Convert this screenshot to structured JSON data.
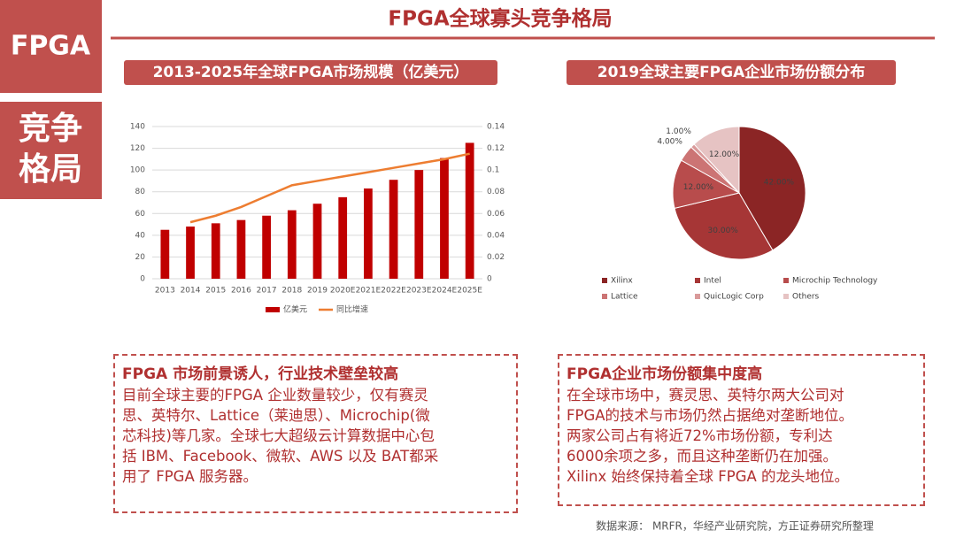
{
  "slide": {
    "tag": "FPGA",
    "tag2": "竞争格局",
    "title": "FPGA全球寡头竞争格局",
    "source": "数据来源： MRFR，华经产业研究院，方正证券研究所整理",
    "left_box": {
      "heading": "FPGA 市场前景诱人，行业技术壁垒较高",
      "lines": [
        "目前全球主要的FPGA 企业数量较少，仅有赛灵",
        "思、英特尔、Lattice（莱迪思）、Microchip(微",
        "芯科技)等几家。全球七大超级云计算数据中心包",
        "括 IBM、Facebook、微软、AWS 以及 BAT都采",
        "用了 FPGA 服务器。"
      ]
    },
    "right_box": {
      "heading": "FPGA企业市场份额集中度高",
      "lines": [
        "在全球市场中，赛灵思、英特尔两大公司对",
        "FPGA的技术与市场仍然占据绝对垄断地位。",
        "两家公司占有将近72%市场份额，专利达",
        "6000余项之多，而且这种垄断仍在加强。",
        "Xilinx 始终保持着全球 FPGA 的龙头地位。"
      ]
    }
  },
  "chart_data": [
    {
      "type": "bar",
      "title": "2013-2025年全球FPGA市场规模（亿美元）",
      "categories": [
        "2013",
        "2014",
        "2015",
        "2016",
        "2017",
        "2018",
        "2019",
        "2020E",
        "2021E",
        "2022E",
        "2023E",
        "2024E",
        "2025E"
      ],
      "series": [
        {
          "name": "亿美元",
          "type": "bar",
          "color": "#c00000",
          "values": [
            45,
            48,
            51,
            54,
            58,
            63,
            69,
            75,
            83,
            91,
            100,
            111,
            125
          ]
        },
        {
          "name": "同比增速",
          "type": "line",
          "axis": "y2",
          "color": "#ed7d31",
          "values": [
            null,
            0.052,
            0.058,
            0.066,
            0.076,
            0.086,
            0.09,
            0.094,
            0.098,
            0.102,
            0.106,
            0.11,
            0.115
          ]
        }
      ],
      "ylim": [
        0,
        140
      ],
      "yticks": [
        0,
        20,
        40,
        60,
        80,
        100,
        120,
        140
      ],
      "y2lim": [
        0,
        0.14
      ],
      "y2ticks": [
        0,
        0.02,
        0.04,
        0.06,
        0.08,
        0.1,
        0.12,
        0.14
      ],
      "legend": "bottom"
    },
    {
      "type": "pie",
      "title": "2019全球主要FPGA企业市场份额分布",
      "categories": [
        "Xilinx",
        "Intel",
        "Microchip Technology",
        "Lattice",
        "QuicLogic Corp",
        "Others"
      ],
      "values": [
        42,
        30,
        12,
        4,
        1,
        12
      ],
      "value_labels": [
        "42.00%",
        "30.00%",
        "12.00%",
        "4.00%",
        "1.00%",
        "12.00%"
      ],
      "colors": [
        "#8b2525",
        "#a63636",
        "#b84c4c",
        "#cc7474",
        "#d99a9a",
        "#e6c3c3"
      ],
      "legend": "bottom"
    }
  ]
}
